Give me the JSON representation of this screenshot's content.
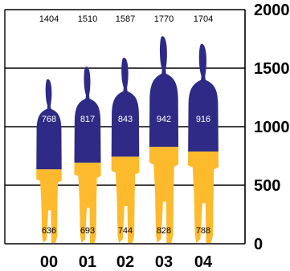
{
  "chart_data": {
    "type": "bar",
    "stacked": true,
    "pictogram": "human-silhouette",
    "categories": [
      "00",
      "01",
      "02",
      "03",
      "04"
    ],
    "series": [
      {
        "values": [
          636,
          693,
          744,
          828,
          788
        ],
        "color": "#FDBA2D"
      },
      {
        "values": [
          768,
          817,
          843,
          942,
          916
        ],
        "color": "#2E2A86"
      }
    ],
    "totals": [
      1404,
      1510,
      1587,
      1770,
      1704
    ],
    "ylim": [
      0,
      2000
    ],
    "yticks": [
      0,
      500,
      1000,
      1500,
      2000
    ],
    "grid": true,
    "y_axis_side": "right",
    "title": "",
    "xlabel": "",
    "ylabel": ""
  }
}
